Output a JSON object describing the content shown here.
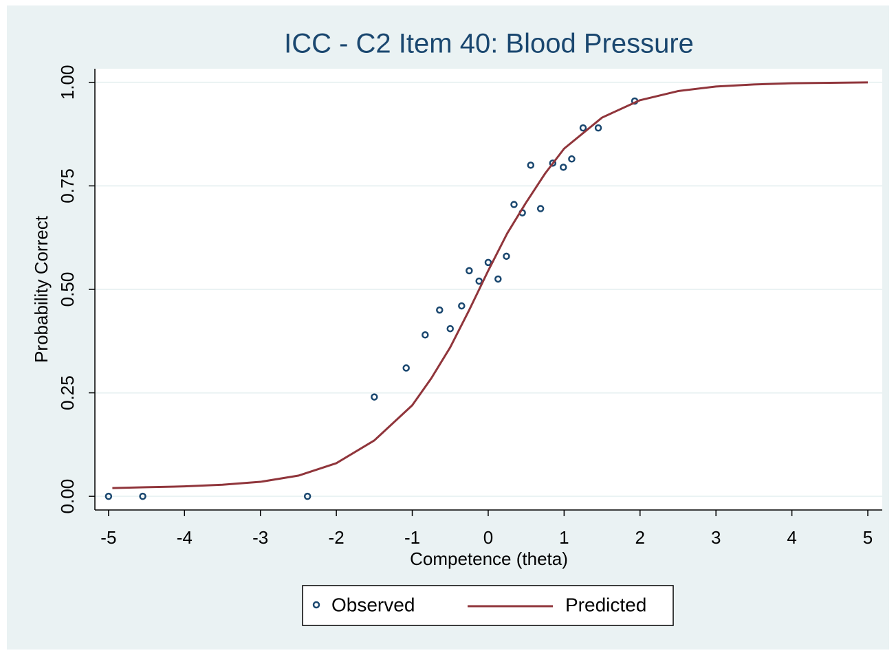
{
  "chart_data": {
    "type": "scatter_line",
    "title": "ICC - C2 Item 40: Blood Pressure",
    "x_label": "Competence (theta)",
    "y_label": "Probability Correct",
    "xlim": [
      -5.18,
      5.19
    ],
    "ylim": [
      -0.033,
      1.033
    ],
    "xticks": [
      -5,
      -4,
      -3,
      -2,
      -1,
      0,
      1,
      2,
      3,
      4,
      5
    ],
    "yticks": [
      {
        "value": 0,
        "label": "0.00"
      },
      {
        "value": 0.25,
        "label": "0.25"
      },
      {
        "value": 0.5,
        "label": "0.50"
      },
      {
        "value": 0.75,
        "label": "0.75"
      },
      {
        "value": 1,
        "label": "1.00"
      }
    ],
    "grid": true,
    "legend": "bottom",
    "series": [
      {
        "name": "Observed",
        "color": "#1a476f",
        "marker": "hollow-circle",
        "x": [
          -5,
          -4.55,
          -2.38,
          -1.5,
          -1.08,
          -0.83,
          -0.64,
          -0.5,
          -0.35,
          -0.25,
          -0.12,
          0,
          0.13,
          0.24,
          0.34,
          0.45,
          0.56,
          0.69,
          0.85,
          0.99,
          1.1,
          1.25,
          1.45,
          1.93
        ],
        "values": [
          0,
          0,
          0,
          0.24,
          0.31,
          0.39,
          0.45,
          0.405,
          0.46,
          0.545,
          0.52,
          0.565,
          0.525,
          0.58,
          0.705,
          0.685,
          0.8,
          0.695,
          0.805,
          0.795,
          0.815,
          0.89,
          0.89,
          0.955
        ]
      },
      {
        "name": "Predicted",
        "color": "#90353b",
        "marker": "line",
        "x": [
          -4.95,
          -4.5,
          -4,
          -3.5,
          -3,
          -2.5,
          -2,
          -1.5,
          -1,
          -0.75,
          -0.5,
          -0.25,
          0,
          0.25,
          0.5,
          0.75,
          1,
          1.5,
          2,
          2.5,
          3,
          3.5,
          4,
          4.5,
          5
        ],
        "values": [
          0.02,
          0.022,
          0.024,
          0.028,
          0.035,
          0.05,
          0.08,
          0.135,
          0.22,
          0.285,
          0.36,
          0.45,
          0.545,
          0.635,
          0.71,
          0.78,
          0.84,
          0.915,
          0.957,
          0.979,
          0.99,
          0.995,
          0.998,
          0.999,
          1.0
        ]
      }
    ]
  }
}
